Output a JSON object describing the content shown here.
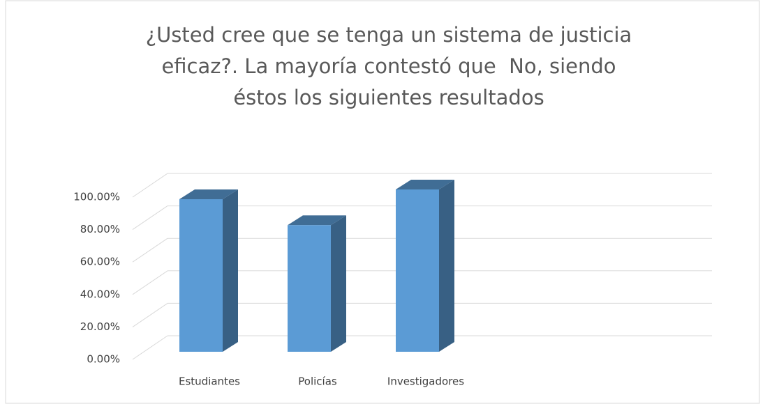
{
  "chart_data": {
    "type": "bar3d",
    "title": [
      "¿Usted cree que se tenga un sistema de justicia",
      "eficaz?. La mayoría contestó que  No, siendo",
      "éstos los siguientes resultados"
    ],
    "categories": [
      "Estudiantes",
      "Policías",
      "Investigadores"
    ],
    "values": [
      94,
      78,
      100
    ],
    "color": "#5b9bd5",
    "ylim": [
      0,
      100
    ],
    "yticks": [
      {
        "value": 0,
        "label": "0.00%"
      },
      {
        "value": 20,
        "label": "20.00%"
      },
      {
        "value": 40,
        "label": "40.00%"
      },
      {
        "value": 60,
        "label": "60.00%"
      },
      {
        "value": 80,
        "label": "80.00%"
      },
      {
        "value": 100,
        "label": "100.00%"
      }
    ],
    "grid": true
  }
}
